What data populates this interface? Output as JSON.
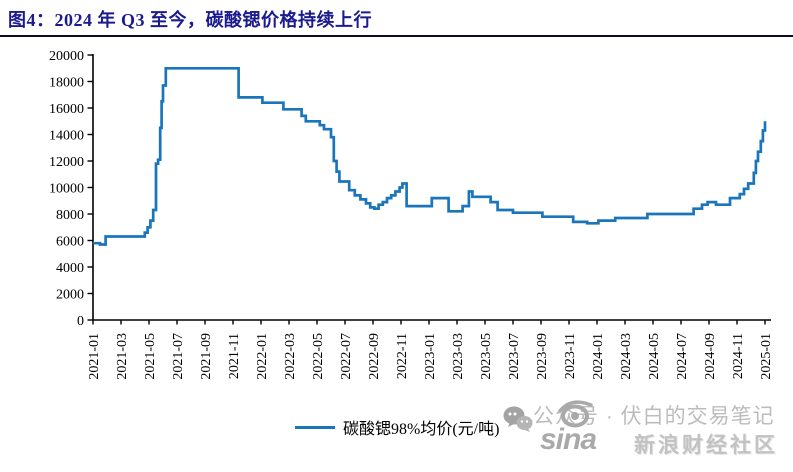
{
  "title": {
    "label": "图4：2024 年 Q3 至今，碳酸锶价格持续上行"
  },
  "colors": {
    "line": "#1b75bb",
    "title": "#1b1b8e",
    "rule": "#0a0a23",
    "axis": "#000000",
    "watermark_gray": "#bcbcbc"
  },
  "legend": {
    "label": "碳酸锶98%均价(元/吨)"
  },
  "watermark": {
    "wechat_icon": "wechat-bubbles",
    "account_text": "公众号 · 伏白的交易笔记",
    "sina_word": "sina",
    "sina_community": "新浪财经社区"
  },
  "chart_data": {
    "type": "line",
    "title": "图4：2024 年 Q3 至今，碳酸锶价格持续上行",
    "xlabel": "",
    "ylabel": "",
    "ylim": [
      0,
      20000
    ],
    "y_ticks": [
      0,
      2000,
      4000,
      6000,
      8000,
      10000,
      12000,
      14000,
      16000,
      18000,
      20000
    ],
    "x_start": "2021-01",
    "x_end": "2025-01",
    "x_tick_step_months": 2,
    "x_tick_labels": [
      "2021-01",
      "2021-03",
      "2021-05",
      "2021-07",
      "2021-09",
      "2021-11",
      "2022-01",
      "2022-03",
      "2022-05",
      "2022-07",
      "2022-09",
      "2022-11",
      "2023-01",
      "2023-03",
      "2023-05",
      "2023-07",
      "2023-09",
      "2023-11",
      "2024-01",
      "2024-03",
      "2024-05",
      "2024-07",
      "2024-09",
      "2024-11",
      "2025-01"
    ],
    "grid": false,
    "legend_position": "bottom-center",
    "series": [
      {
        "name": "碳酸锶98%均价(元/吨)",
        "color": "#1b75bb",
        "step": "after",
        "points_unit": [
          "months_since_2021-01",
          "yuan_per_ton"
        ],
        "points": [
          [
            0,
            5800
          ],
          [
            0.5,
            5700
          ],
          [
            0.9,
            6300
          ],
          [
            3.7,
            6600
          ],
          [
            3.9,
            7000
          ],
          [
            4.1,
            7500
          ],
          [
            4.3,
            8300
          ],
          [
            4.5,
            11800
          ],
          [
            4.65,
            12100
          ],
          [
            4.8,
            14500
          ],
          [
            4.9,
            16500
          ],
          [
            5.0,
            17700
          ],
          [
            5.2,
            19000
          ],
          [
            10.4,
            16800
          ],
          [
            12.1,
            16400
          ],
          [
            13.6,
            15900
          ],
          [
            14.9,
            15400
          ],
          [
            15.2,
            15000
          ],
          [
            16.2,
            14700
          ],
          [
            16.5,
            14400
          ],
          [
            17.0,
            13800
          ],
          [
            17.2,
            12000
          ],
          [
            17.4,
            11200
          ],
          [
            17.6,
            10450
          ],
          [
            18.3,
            9800
          ],
          [
            18.7,
            9400
          ],
          [
            19.1,
            9100
          ],
          [
            19.5,
            8800
          ],
          [
            19.8,
            8500
          ],
          [
            20.1,
            8400
          ],
          [
            20.4,
            8700
          ],
          [
            20.7,
            8900
          ],
          [
            21.0,
            9200
          ],
          [
            21.3,
            9400
          ],
          [
            21.6,
            9700
          ],
          [
            21.9,
            10000
          ],
          [
            22.1,
            10300
          ],
          [
            22.4,
            8600
          ],
          [
            24.2,
            9200
          ],
          [
            25.4,
            8200
          ],
          [
            26.4,
            8600
          ],
          [
            26.85,
            9700
          ],
          [
            27.1,
            9300
          ],
          [
            28.4,
            8900
          ],
          [
            28.9,
            8300
          ],
          [
            30.0,
            8100
          ],
          [
            32.1,
            7800
          ],
          [
            34.3,
            7400
          ],
          [
            35.3,
            7300
          ],
          [
            36.1,
            7500
          ],
          [
            37.3,
            7700
          ],
          [
            39.6,
            8000
          ],
          [
            42.9,
            8400
          ],
          [
            43.5,
            8700
          ],
          [
            43.9,
            8900
          ],
          [
            44.5,
            8700
          ],
          [
            45.5,
            9200
          ],
          [
            46.2,
            9500
          ],
          [
            46.5,
            9900
          ],
          [
            46.8,
            10300
          ],
          [
            47.2,
            11100
          ],
          [
            47.35,
            12000
          ],
          [
            47.5,
            12700
          ],
          [
            47.7,
            13500
          ],
          [
            47.85,
            14300
          ],
          [
            48,
            15000
          ]
        ]
      }
    ]
  }
}
